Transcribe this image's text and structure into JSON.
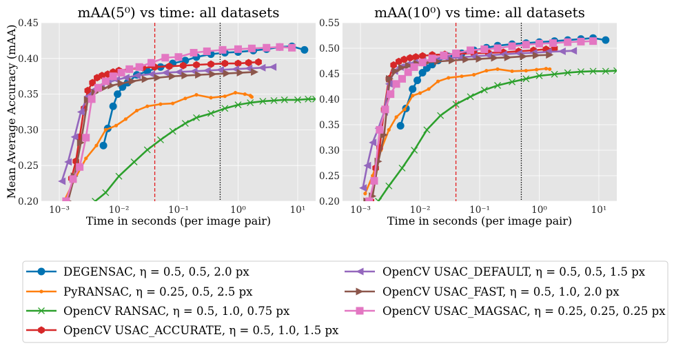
{
  "chart_data": [
    {
      "type": "line",
      "title": "mAA(5⁰) vs time: all datasets",
      "xlabel": "Time in seconds (per image pair)",
      "ylabel": "Mean Average Accuracy (mAA)",
      "xscale": "log",
      "xlim": [
        0.0005,
        20
      ],
      "ylim": [
        0.2,
        0.45
      ],
      "yticks": [
        "0.20",
        "0.25",
        "0.30",
        "0.35",
        "0.40",
        "0.45"
      ],
      "xticks": [
        "10⁻³",
        "10⁻²",
        "10⁻¹",
        "10⁰",
        "10¹"
      ],
      "grid": true,
      "vlines": [
        {
          "x": 0.04,
          "color": "#e41a1c",
          "style": "dashed"
        },
        {
          "x": 0.5,
          "color": "#000000",
          "style": "dotted"
        }
      ],
      "series": [
        {
          "name": "DEGENSAC, η = 0.5, 0.5, 2.0 px",
          "color": "#0173b2",
          "marker": "circle",
          "x": [
            0.0055,
            0.0065,
            0.008,
            0.0095,
            0.0115,
            0.014,
            0.02,
            0.03,
            0.05,
            0.08,
            0.13,
            0.2,
            0.35,
            0.6,
            1.0,
            1.8,
            3.0,
            5.0,
            8.0,
            13.0
          ],
          "y": [
            0.278,
            0.302,
            0.333,
            0.35,
            0.36,
            0.366,
            0.377,
            0.382,
            0.388,
            0.393,
            0.397,
            0.402,
            0.406,
            0.408,
            0.409,
            0.411,
            0.413,
            0.416,
            0.417,
            0.412
          ]
        },
        {
          "name": "PyRANSAC, η = 0.25, 0.5, 2.5 px",
          "color": "#ff7f0e",
          "marker": "dot",
          "x": [
            0.0012,
            0.0018,
            0.0028,
            0.0042,
            0.006,
            0.009,
            0.013,
            0.02,
            0.03,
            0.05,
            0.08,
            0.13,
            0.2,
            0.35,
            0.6,
            0.9,
            1.3,
            1.6,
            1.65,
            1.7
          ],
          "y": [
            0.2,
            0.23,
            0.26,
            0.278,
            0.3,
            0.306,
            0.315,
            0.327,
            0.333,
            0.336,
            0.337,
            0.344,
            0.349,
            0.345,
            0.347,
            0.352,
            0.35,
            0.348,
            0.347,
            0.346
          ]
        },
        {
          "name": "OpenCV RANSAC, η = 0.5, 1.0, 0.75 px",
          "color": "#2ca02c",
          "marker": "x",
          "x": [
            0.004,
            0.006,
            0.01,
            0.018,
            0.03,
            0.05,
            0.08,
            0.13,
            0.2,
            0.35,
            0.6,
            1.0,
            1.6,
            2.6,
            4.0,
            6.0,
            10.0,
            15.0,
            20.0
          ],
          "y": [
            0.2,
            0.212,
            0.235,
            0.255,
            0.272,
            0.286,
            0.298,
            0.309,
            0.317,
            0.323,
            0.33,
            0.335,
            0.338,
            0.34,
            0.341,
            0.342,
            0.342,
            0.343,
            0.343
          ]
        },
        {
          "name": "OpenCV USAC_ACCURATE, η = 0.5, 1.0, 1.5 px",
          "color": "#d62728",
          "marker": "hexagon",
          "x": [
            0.0016,
            0.0019,
            0.0022,
            0.0026,
            0.003,
            0.0036,
            0.0043,
            0.0052,
            0.0065,
            0.008,
            0.01,
            0.015,
            0.025,
            0.04,
            0.07,
            0.12,
            0.2,
            0.35,
            0.6,
            1.0,
            1.5,
            2.2
          ],
          "y": [
            0.232,
            0.256,
            0.29,
            0.33,
            0.355,
            0.366,
            0.373,
            0.376,
            0.378,
            0.381,
            0.383,
            0.385,
            0.387,
            0.388,
            0.389,
            0.39,
            0.391,
            0.392,
            0.393,
            0.393,
            0.394,
            0.395
          ]
        },
        {
          "name": "OpenCV USAC_DEFAULT, η = 0.5, 0.5, 1.5 px",
          "color": "#9467bd",
          "marker": "triangle-left",
          "x": [
            0.0011,
            0.0014,
            0.0018,
            0.0023,
            0.003,
            0.0038,
            0.005,
            0.0065,
            0.009,
            0.013,
            0.02,
            0.035,
            0.06,
            0.1,
            0.18,
            0.3,
            0.5,
            0.9,
            1.5,
            2.5,
            3.8
          ],
          "y": [
            0.228,
            0.255,
            0.29,
            0.325,
            0.347,
            0.356,
            0.362,
            0.366,
            0.37,
            0.373,
            0.376,
            0.378,
            0.38,
            0.381,
            0.382,
            0.383,
            0.384,
            0.385,
            0.386,
            0.387,
            0.388
          ]
        },
        {
          "name": "OpenCV USAC_FAST, η = 0.5, 1.0, 2.0 px",
          "color": "#8c564b",
          "marker": "triangle-right",
          "x": [
            0.0014,
            0.0018,
            0.0023,
            0.003,
            0.004,
            0.0055,
            0.0075,
            0.011,
            0.017,
            0.028,
            0.045,
            0.08,
            0.13,
            0.22,
            0.38,
            0.65,
            1.1,
            1.9
          ],
          "y": [
            0.2,
            0.235,
            0.282,
            0.342,
            0.352,
            0.358,
            0.362,
            0.365,
            0.368,
            0.371,
            0.373,
            0.375,
            0.376,
            0.377,
            0.378,
            0.379,
            0.38,
            0.381
          ]
        },
        {
          "name": "OpenCV USAC_MAGSAC, η = 0.25, 0.25, 0.25 px",
          "color": "#e377c2",
          "marker": "square",
          "x": [
            0.0013,
            0.0017,
            0.0022,
            0.0028,
            0.0035,
            0.0045,
            0.006,
            0.008,
            0.011,
            0.015,
            0.022,
            0.035,
            0.06,
            0.1,
            0.18,
            0.3,
            0.55,
            1.0,
            1.7,
            3.0,
            5.0,
            8.0
          ],
          "y": [
            0.2,
            0.231,
            0.248,
            0.289,
            0.343,
            0.359,
            0.368,
            0.375,
            0.38,
            0.385,
            0.388,
            0.394,
            0.401,
            0.402,
            0.408,
            0.41,
            0.412,
            0.413,
            0.414,
            0.415,
            0.416,
            0.415
          ]
        }
      ]
    },
    {
      "type": "line",
      "title": "mAA(10⁰) vs time: all datasets",
      "xlabel": "Time in seconds (per image pair)",
      "ylabel": "",
      "xscale": "log",
      "xlim": [
        0.0005,
        20
      ],
      "ylim": [
        0.2,
        0.55
      ],
      "yticks": [
        "0.20",
        "0.25",
        "0.30",
        "0.35",
        "0.40",
        "0.45",
        "0.50",
        "0.55"
      ],
      "xticks": [
        "10⁻³",
        "10⁻²",
        "10⁻¹",
        "10⁰",
        "10¹"
      ],
      "grid": true,
      "vlines": [
        {
          "x": 0.04,
          "color": "#e41a1c",
          "style": "dashed"
        },
        {
          "x": 0.5,
          "color": "#000000",
          "style": "dotted"
        }
      ],
      "series": [
        {
          "name": "DEGENSAC, η = 0.5, 0.5, 2.0 px",
          "color": "#0173b2",
          "marker": "circle",
          "x": [
            0.0047,
            0.0058,
            0.0075,
            0.009,
            0.011,
            0.013,
            0.016,
            0.02,
            0.03,
            0.05,
            0.08,
            0.13,
            0.2,
            0.35,
            0.6,
            1.0,
            1.8,
            3.0,
            5.0,
            8.0,
            13.0
          ],
          "y": [
            0.348,
            0.382,
            0.42,
            0.437,
            0.452,
            0.461,
            0.468,
            0.476,
            0.484,
            0.49,
            0.496,
            0.501,
            0.505,
            0.508,
            0.51,
            0.512,
            0.514,
            0.516,
            0.518,
            0.52,
            0.516
          ]
        },
        {
          "name": "PyRANSAC, η = 0.25, 0.5, 2.5 px",
          "color": "#ff7f0e",
          "marker": "dot",
          "x": [
            0.0012,
            0.0016,
            0.0022,
            0.003,
            0.004,
            0.0055,
            0.0075,
            0.01,
            0.014,
            0.02,
            0.03,
            0.05,
            0.08,
            0.13,
            0.2,
            0.35,
            0.6,
            0.9,
            1.3,
            1.5
          ],
          "y": [
            0.215,
            0.25,
            0.3,
            0.34,
            0.365,
            0.38,
            0.407,
            0.412,
            0.42,
            0.435,
            0.442,
            0.445,
            0.448,
            0.456,
            0.459,
            0.455,
            0.456,
            0.458,
            0.46,
            0.459
          ]
        },
        {
          "name": "OpenCV RANSAC, η = 0.5, 1.0, 0.75 px",
          "color": "#2ca02c",
          "marker": "x",
          "x": [
            0.002,
            0.003,
            0.005,
            0.008,
            0.013,
            0.022,
            0.04,
            0.07,
            0.12,
            0.2,
            0.35,
            0.6,
            1.0,
            1.8,
            3.0,
            5.0,
            8.0,
            13.0,
            20.0
          ],
          "y": [
            0.2,
            0.23,
            0.265,
            0.3,
            0.34,
            0.368,
            0.39,
            0.405,
            0.418,
            0.427,
            0.434,
            0.44,
            0.446,
            0.449,
            0.452,
            0.454,
            0.455,
            0.455,
            0.456
          ]
        },
        {
          "name": "OpenCV USAC_ACCURATE, η = 0.5, 1.0, 1.5 px",
          "color": "#d62728",
          "marker": "hexagon",
          "x": [
            0.0015,
            0.0018,
            0.0021,
            0.0025,
            0.003,
            0.0036,
            0.0044,
            0.0054,
            0.0068,
            0.0085,
            0.011,
            0.016,
            0.026,
            0.045,
            0.08,
            0.14,
            0.25,
            0.45,
            0.8,
            1.3,
            1.8
          ],
          "y": [
            0.2,
            0.265,
            0.305,
            0.38,
            0.44,
            0.467,
            0.474,
            0.478,
            0.481,
            0.483,
            0.485,
            0.487,
            0.488,
            0.489,
            0.49,
            0.491,
            0.492,
            0.494,
            0.496,
            0.498,
            0.5
          ]
        },
        {
          "name": "OpenCV USAC_DEFAULT, η = 0.5, 0.5, 1.5 px",
          "color": "#9467bd",
          "marker": "triangle-left",
          "x": [
            0.0011,
            0.0013,
            0.0016,
            0.002,
            0.0025,
            0.003,
            0.0037,
            0.0046,
            0.006,
            0.008,
            0.011,
            0.017,
            0.028,
            0.045,
            0.08,
            0.14,
            0.25,
            0.45,
            0.8,
            1.4,
            2.4,
            3.7
          ],
          "y": [
            0.226,
            0.27,
            0.315,
            0.343,
            0.375,
            0.43,
            0.455,
            0.463,
            0.468,
            0.472,
            0.475,
            0.478,
            0.48,
            0.482,
            0.484,
            0.486,
            0.488,
            0.49,
            0.491,
            0.493,
            0.494,
            0.495
          ]
        },
        {
          "name": "OpenCV USAC_FAST, η = 0.5, 1.0, 2.0 px",
          "color": "#8c564b",
          "marker": "triangle-right",
          "x": [
            0.0013,
            0.0016,
            0.002,
            0.0025,
            0.0031,
            0.0039,
            0.005,
            0.0065,
            0.009,
            0.013,
            0.02,
            0.035,
            0.06,
            0.1,
            0.18,
            0.3,
            0.55,
            0.9,
            1.5
          ],
          "y": [
            0.2,
            0.21,
            0.278,
            0.33,
            0.44,
            0.455,
            0.462,
            0.466,
            0.47,
            0.472,
            0.474,
            0.476,
            0.478,
            0.479,
            0.481,
            0.482,
            0.484,
            0.486,
            0.487
          ]
        },
        {
          "name": "OpenCV USAC_MAGSAC, η = 0.25, 0.25, 0.25 px",
          "color": "#e377c2",
          "marker": "square",
          "x": [
            0.0014,
            0.0017,
            0.0021,
            0.0026,
            0.0032,
            0.004,
            0.005,
            0.0063,
            0.008,
            0.011,
            0.016,
            0.025,
            0.04,
            0.07,
            0.12,
            0.2,
            0.35,
            0.6,
            1.0,
            1.7,
            3.0,
            5.0,
            8.0
          ],
          "y": [
            0.2,
            0.24,
            0.34,
            0.38,
            0.41,
            0.43,
            0.44,
            0.453,
            0.463,
            0.472,
            0.48,
            0.486,
            0.49,
            0.496,
            0.498,
            0.5,
            0.504,
            0.507,
            0.509,
            0.51,
            0.512,
            0.513,
            0.514
          ]
        }
      ]
    }
  ]
}
